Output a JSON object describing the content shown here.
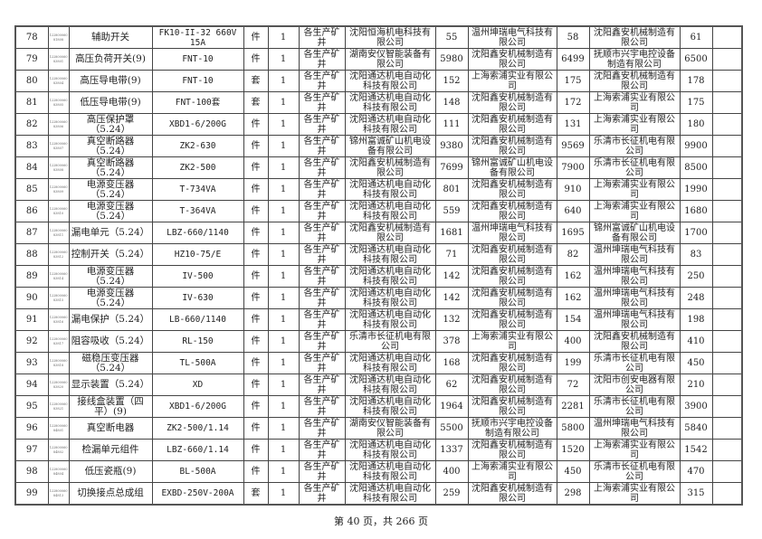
{
  "rows": [
    {
      "no": "78",
      "code": "122800060 81808",
      "name": "辅助开关",
      "model": "FK10-II-32 660V 15A",
      "unit": "件",
      "qty": "1",
      "usage": "各生产矿井",
      "s1": "沈阳恒海机电科技有限公司",
      "p1": "55",
      "s2": "温州坤瑞电气科技有限公司",
      "p2": "58",
      "s3": "沈阳鑫安机械制造有限公司",
      "p3": "61"
    },
    {
      "no": "79",
      "code": "122800060 83801",
      "name": "高压负荷开关(9)",
      "model": "FNT-10",
      "unit": "件",
      "qty": "1",
      "usage": "各生产矿井",
      "s1": "湖南安仪智能装备有限公司",
      "p1": "5980",
      "s2": "沈阳鑫安机械制造有限公司",
      "p2": "6499",
      "s3": "抚顺市兴宇电控设备制造有限公司",
      "p3": "6500"
    },
    {
      "no": "80",
      "code": "122800060 83804",
      "name": "高压导电带(9)",
      "model": "FNT-10",
      "unit": "套",
      "qty": "1",
      "usage": "各生产矿井",
      "s1": "沈阳通达机电自动化科技有限公司",
      "p1": "152",
      "s2": "上海索浦实业有限公司",
      "p2": "175",
      "s3": "沈阳鑫安机械制造有限公司",
      "p3": "178"
    },
    {
      "no": "81",
      "code": "122800060 83805",
      "name": "低压导电带(9)",
      "model": "FNT-100套",
      "unit": "套",
      "qty": "1",
      "usage": "各生产矿井",
      "s1": "沈阳通达机电自动化科技有限公司",
      "p1": "148",
      "s2": "沈阳鑫安机械制造有限公司",
      "p2": "172",
      "s3": "上海索浦实业有限公司",
      "p3": "175"
    },
    {
      "no": "82",
      "code": "122800060 83806",
      "name": "高压保护罩（5.24）",
      "model": "XBD1-6/200G",
      "unit": "件",
      "qty": "1",
      "usage": "各生产矿井",
      "s1": "沈阳通达机电自动化科技有限公司",
      "p1": "111",
      "s2": "沈阳鑫安机械制造有限公司",
      "p2": "131",
      "s3": "上海索浦实业有限公司",
      "p3": "180"
    },
    {
      "no": "83",
      "code": "122800060 83807",
      "name": "真空断路器（5.24）",
      "model": "ZK2-630",
      "unit": "件",
      "qty": "1",
      "usage": "各生产矿井",
      "s1": "锦州富诚矿山机电设备有限公司",
      "p1": "9380",
      "s2": "沈阳鑫安机械制造有限公司",
      "p2": "9569",
      "s3": "乐清市长征机电有限公司",
      "p3": "9900"
    },
    {
      "no": "84",
      "code": "122800060 83808",
      "name": "真空断路器（5.24）",
      "model": "ZK2-500",
      "unit": "件",
      "qty": "1",
      "usage": "各生产矿井",
      "s1": "沈阳鑫安机械制造有限公司",
      "p1": "7699",
      "s2": "锦州富诚矿山机电设备有限公司",
      "p2": "7900",
      "s3": "乐清市长征机电有限公司",
      "p3": "8500"
    },
    {
      "no": "85",
      "code": "122800060 83809",
      "name": "电源变压器（5.24）",
      "model": "T-734VA",
      "unit": "件",
      "qty": "1",
      "usage": "各生产矿井",
      "s1": "沈阳通达机电自动化科技有限公司",
      "p1": "801",
      "s2": "沈阳鑫安机械制造有限公司",
      "p2": "910",
      "s3": "上海索浦实业有限公司",
      "p3": "1990"
    },
    {
      "no": "86",
      "code": "122800060 83810",
      "name": "电源变压器（5.24）",
      "model": "T-364VA",
      "unit": "件",
      "qty": "1",
      "usage": "各生产矿井",
      "s1": "沈阳通达机电自动化科技有限公司",
      "p1": "559",
      "s2": "沈阳鑫安机械制造有限公司",
      "p2": "640",
      "s3": "上海索浦实业有限公司",
      "p3": "1680"
    },
    {
      "no": "87",
      "code": "122800060 83811",
      "name": "漏电单元（5.24）",
      "model": "LBZ-660/1140",
      "unit": "件",
      "qty": "1",
      "usage": "各生产矿井",
      "s1": "沈阳鑫安机械制造有限公司",
      "p1": "1681",
      "s2": "温州坤瑞电气科技有限公司",
      "p2": "1695",
      "s3": "锦州富诚矿山机电设备有限公司",
      "p3": "1700"
    },
    {
      "no": "88",
      "code": "122800060 83812",
      "name": "控制开关（5.24）",
      "model": "HZ10-75/E",
      "unit": "件",
      "qty": "1",
      "usage": "各生产矿井",
      "s1": "沈阳通达机电自动化科技有限公司",
      "p1": "71",
      "s2": "沈阳鑫安机械制造有限公司",
      "p2": "82",
      "s3": "温州坤瑞电气科技有限公司",
      "p3": "83"
    },
    {
      "no": "89",
      "code": "122800060 83814",
      "name": "电源变压器（5.24）",
      "model": "IV-500",
      "unit": "件",
      "qty": "1",
      "usage": "各生产矿井",
      "s1": "沈阳通达机电自动化科技有限公司",
      "p1": "142",
      "s2": "沈阳鑫安机械制造有限公司",
      "p2": "162",
      "s3": "温州坤瑞电气科技有限公司",
      "p3": "250"
    },
    {
      "no": "90",
      "code": "122800060 83815",
      "name": "电源变压器（5.24）",
      "model": "IV-630",
      "unit": "件",
      "qty": "1",
      "usage": "各生产矿井",
      "s1": "沈阳通达机电自动化科技有限公司",
      "p1": "142",
      "s2": "沈阳鑫安机械制造有限公司",
      "p2": "162",
      "s3": "温州坤瑞电气科技有限公司",
      "p3": "248"
    },
    {
      "no": "91",
      "code": "122800060 83816",
      "name": "漏电保护（5.24）",
      "model": "LB-660/1140",
      "unit": "件",
      "qty": "1",
      "usage": "各生产矿井",
      "s1": "沈阳通达机电自动化科技有限公司",
      "p1": "132",
      "s2": "沈阳鑫安机械制造有限公司",
      "p2": "154",
      "s3": "温州坤瑞电气科技有限公司",
      "p3": "198"
    },
    {
      "no": "92",
      "code": "122800060 83817",
      "name": "阻容吸收（5.24）",
      "model": "RL-150",
      "unit": "件",
      "qty": "1",
      "usage": "各生产矿井",
      "s1": "乐清市长征机电有限公司",
      "p1": "378",
      "s2": "上海索浦实业有限公司",
      "p2": "400",
      "s3": "沈阳鑫安机械制造有限公司",
      "p3": "410"
    },
    {
      "no": "93",
      "code": "122800060 83818",
      "name": "磁稳压变压器（5.24）",
      "model": "TL-500A",
      "unit": "件",
      "qty": "1",
      "usage": "各生产矿井",
      "s1": "沈阳通达机电自动化科技有限公司",
      "p1": "168",
      "s2": "沈阳鑫安机械制造有限公司",
      "p2": "199",
      "s3": "乐清市长征机电有限公司",
      "p3": "450"
    },
    {
      "no": "94",
      "code": "122800060 83820",
      "name": "显示装置（5.24）",
      "model": "XD",
      "unit": "件",
      "qty": "1",
      "usage": "各生产矿井",
      "s1": "沈阳通达机电自动化科技有限公司",
      "p1": "62",
      "s2": "沈阳鑫安机械制造有限公司",
      "p2": "72",
      "s3": "沈阳市创安电器有限公司",
      "p3": "210"
    },
    {
      "no": "95",
      "code": "122800060 83821",
      "name": "接线盒装置（四平）(9)",
      "model": "XBD1-6/200G",
      "unit": "件",
      "qty": "1",
      "usage": "各生产矿井",
      "s1": "沈阳通达机电自动化科技有限公司",
      "p1": "1964",
      "s2": "沈阳鑫安机械制造有限公司",
      "p2": "2281",
      "s3": "乐清市长征机电有限公司",
      "p3": "3900"
    },
    {
      "no": "96",
      "code": "122800060 84801",
      "name": "真空断电器",
      "model": "ZK2-500/1.14",
      "unit": "件",
      "qty": "1",
      "usage": "各生产矿井",
      "s1": "湖南安仪智能装备有限公司",
      "p1": "5500",
      "s2": "抚顺市兴宇电控设备制造有限公司",
      "p2": "5800",
      "s3": "温州坤瑞电气科技有限公司",
      "p3": "5840"
    },
    {
      "no": "97",
      "code": "122800060 84802",
      "name": "检漏单元组件",
      "model": "LBZ-660/1.14",
      "unit": "件",
      "qty": "1",
      "usage": "各生产矿井",
      "s1": "沈阳通达机电自动化科技有限公司",
      "p1": "1337",
      "s2": "沈阳鑫安机械制造有限公司",
      "p2": "1520",
      "s3": "上海索浦实业有限公司",
      "p3": "1542"
    },
    {
      "no": "98",
      "code": "122800060 84804",
      "name": "低压瓷瓶(9)",
      "model": "BL-500A",
      "unit": "件",
      "qty": "1",
      "usage": "各生产矿井",
      "s1": "沈阳通达机电自动化科技有限公司",
      "p1": "400",
      "s2": "上海索浦实业有限公司",
      "p2": "450",
      "s3": "乐清市长征机电有限公司",
      "p3": "470"
    },
    {
      "no": "99",
      "code": "122800060 84813",
      "name": "切换接点总成组",
      "model": "EXBD-250V-200A",
      "unit": "套",
      "qty": "1",
      "usage": "各生产矿井",
      "s1": "沈阳通达机电自动化科技有限公司",
      "p1": "259",
      "s2": "沈阳鑫安机械制造有限公司",
      "p2": "298",
      "s3": "上海索浦实业有限公司",
      "p3": "315"
    }
  ],
  "footer": "第 40 页，共 266 页"
}
